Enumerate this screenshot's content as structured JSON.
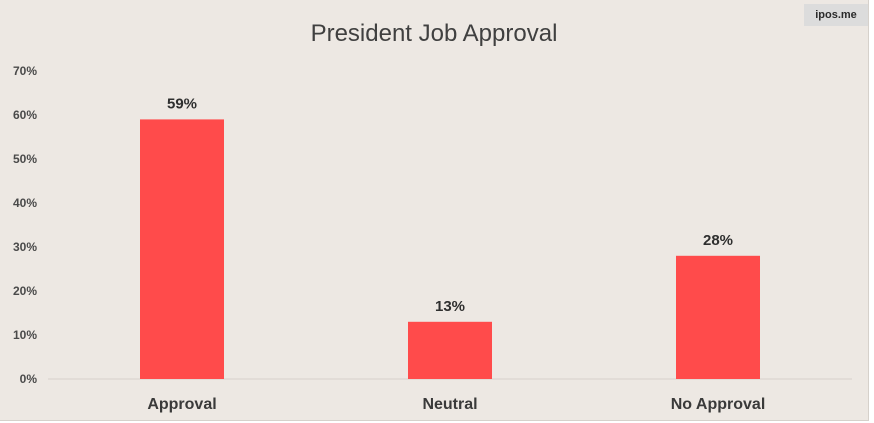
{
  "watermark": "ipos.me",
  "chart_data": {
    "type": "bar",
    "title": "President Job Approval",
    "categories": [
      "Approval",
      "Neutral",
      "No Approval"
    ],
    "values": [
      59,
      13,
      28
    ],
    "data_labels": [
      "59%",
      "13%",
      "28%"
    ],
    "ylim": [
      0,
      70
    ],
    "yticks": [
      0,
      10,
      20,
      30,
      40,
      50,
      60,
      70
    ],
    "ytick_labels": [
      "0%",
      "10%",
      "20%",
      "30%",
      "40%",
      "50%",
      "60%",
      "70%"
    ],
    "xlabel": "",
    "ylabel": "",
    "grid": false,
    "legend": "none",
    "bar_color": "#ff4b4b",
    "background_color": "#ede8e3"
  }
}
